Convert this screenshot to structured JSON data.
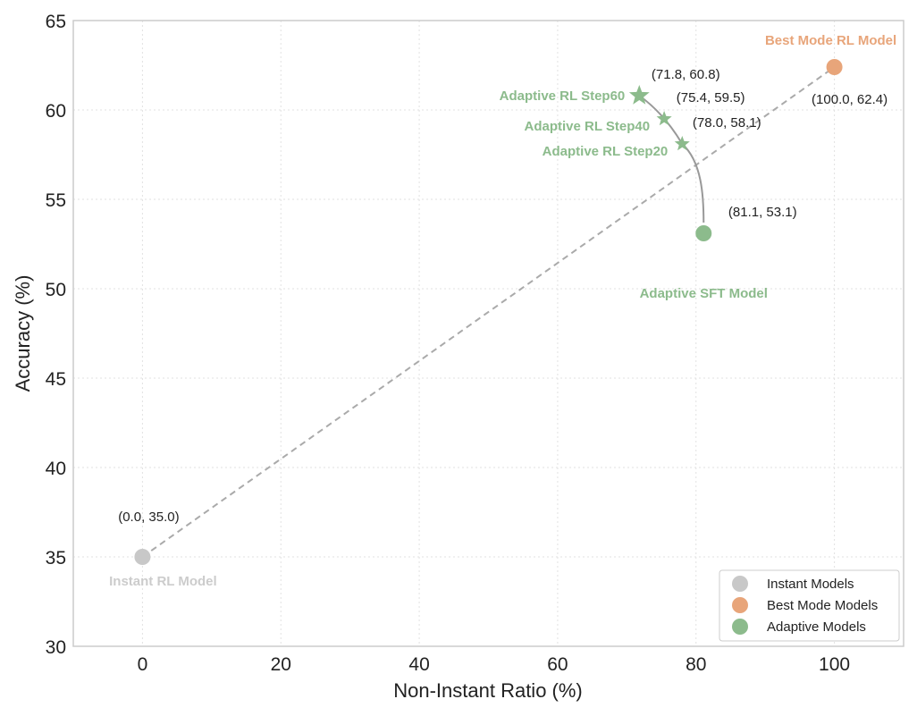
{
  "chart_data": {
    "type": "scatter",
    "xlabel": "Non-Instant Ratio (%)",
    "ylabel": "Accuracy (%)",
    "xlim": [
      -10,
      110
    ],
    "ylim": [
      30,
      65
    ],
    "xticks": [
      "0",
      "20",
      "40",
      "60",
      "80",
      "100"
    ],
    "yticks": [
      "30",
      "35",
      "40",
      "45",
      "50",
      "55",
      "60",
      "65"
    ],
    "grid": true,
    "legend_position": "bottom-right",
    "colors": {
      "instant": "#c8c8c8",
      "best": "#e8a57a",
      "adaptive": "#8cbb8c",
      "dashed_line": "#aaaaaa",
      "curve": "#999999"
    },
    "legend": [
      {
        "label": "Instant Models",
        "color_key": "instant"
      },
      {
        "label": "Best Mode Models",
        "color_key": "best"
      },
      {
        "label": "Adaptive Models",
        "color_key": "adaptive"
      }
    ],
    "points": [
      {
        "name": "Instant RL Model",
        "coord_label": "(0.0, 35.0)",
        "x": 0.0,
        "y": 35.0,
        "marker": "circle",
        "color_key": "instant"
      },
      {
        "name": "Best Mode RL Model",
        "coord_label": "(100.0, 62.4)",
        "x": 100.0,
        "y": 62.4,
        "marker": "circle",
        "color_key": "best"
      },
      {
        "name": "Adaptive SFT Model",
        "coord_label": "(81.1, 53.1)",
        "x": 81.1,
        "y": 53.1,
        "marker": "circle",
        "color_key": "adaptive"
      },
      {
        "name": "Adaptive RL Step20",
        "coord_label": "(78.0, 58.1)",
        "x": 78.0,
        "y": 58.1,
        "marker": "star",
        "color_key": "adaptive"
      },
      {
        "name": "Adaptive RL Step40",
        "coord_label": "(75.4, 59.5)",
        "x": 75.4,
        "y": 59.5,
        "marker": "star",
        "color_key": "adaptive"
      },
      {
        "name": "Adaptive RL Step60",
        "coord_label": "(71.8, 60.8)",
        "x": 71.8,
        "y": 60.8,
        "marker": "star",
        "color_key": "adaptive"
      }
    ]
  }
}
